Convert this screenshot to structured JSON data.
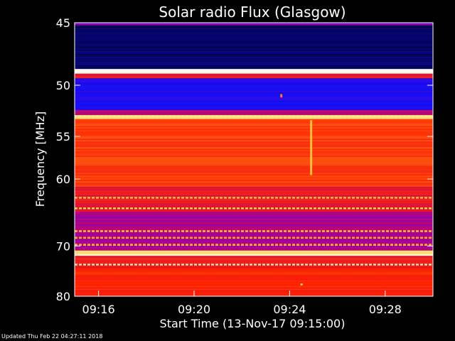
{
  "chart_data": {
    "type": "heatmap",
    "title": "Solar radio Flux (Glasgow)",
    "xlabel": "Start Time (13-Nov-17 09:15:00)",
    "ylabel": "Frequency [MHz]",
    "x_ticks": [
      "09:16",
      "09:20",
      "09:24",
      "09:28"
    ],
    "x_tick_minutes": [
      1,
      5,
      9,
      13
    ],
    "xlim_minutes": [
      0,
      15
    ],
    "y_ticks": [
      45,
      50,
      55,
      60,
      70,
      80
    ],
    "ylim": [
      45,
      80
    ],
    "ylabel_scale": "reciprocal",
    "colormap": [
      "#000020",
      "#1010ff",
      "#a000a0",
      "#ff2000",
      "#ffd040",
      "#ffffff"
    ],
    "bands": [
      {
        "from": 45.0,
        "to": 45.2,
        "level": 0.35
      },
      {
        "from": 45.2,
        "to": 48.6,
        "level": 0.06
      },
      {
        "from": 48.6,
        "to": 49.0,
        "level": 0.98
      },
      {
        "from": 49.0,
        "to": 49.4,
        "level": 0.55
      },
      {
        "from": 49.4,
        "to": 52.3,
        "level": 0.22
      },
      {
        "from": 52.3,
        "to": 52.8,
        "level": 0.45
      },
      {
        "from": 52.8,
        "to": 53.2,
        "level": 0.85
      },
      {
        "from": 53.2,
        "to": 61.0,
        "level": 0.63
      },
      {
        "from": 61.0,
        "to": 64.5,
        "level": 0.55
      },
      {
        "from": 64.5,
        "to": 70.8,
        "level": 0.42
      },
      {
        "from": 70.8,
        "to": 71.6,
        "level": 0.85
      },
      {
        "from": 71.6,
        "to": 74.0,
        "level": 0.55
      },
      {
        "from": 74.0,
        "to": 80.0,
        "level": 0.6
      }
    ],
    "bright_lines": [
      {
        "freq": 48.8,
        "level": 1.0
      },
      {
        "freq": 52.9,
        "level": 0.9
      },
      {
        "freq": 62.5,
        "level": 0.78
      },
      {
        "freq": 64.0,
        "level": 0.8
      },
      {
        "freq": 67.5,
        "level": 0.78
      },
      {
        "freq": 68.6,
        "level": 0.75
      },
      {
        "freq": 69.8,
        "level": 0.78
      },
      {
        "freq": 71.0,
        "level": 0.85
      },
      {
        "freq": 71.6,
        "level": 0.95
      },
      {
        "freq": 73.4,
        "level": 0.88
      }
    ],
    "features": [
      {
        "x_minutes": 9.9,
        "freq_from": 53.3,
        "freq_to": 59.5,
        "level": 0.78
      },
      {
        "x_minutes": 8.65,
        "freq_from": 50.8,
        "freq_to": 51.1,
        "level": 0.7
      },
      {
        "x_minutes": 9.5,
        "freq_from": 77.2,
        "freq_to": 77.6,
        "level": 0.85
      }
    ]
  },
  "footer": {
    "updated_label": "Updated Thu Feb 22 04:27:11 2018"
  }
}
